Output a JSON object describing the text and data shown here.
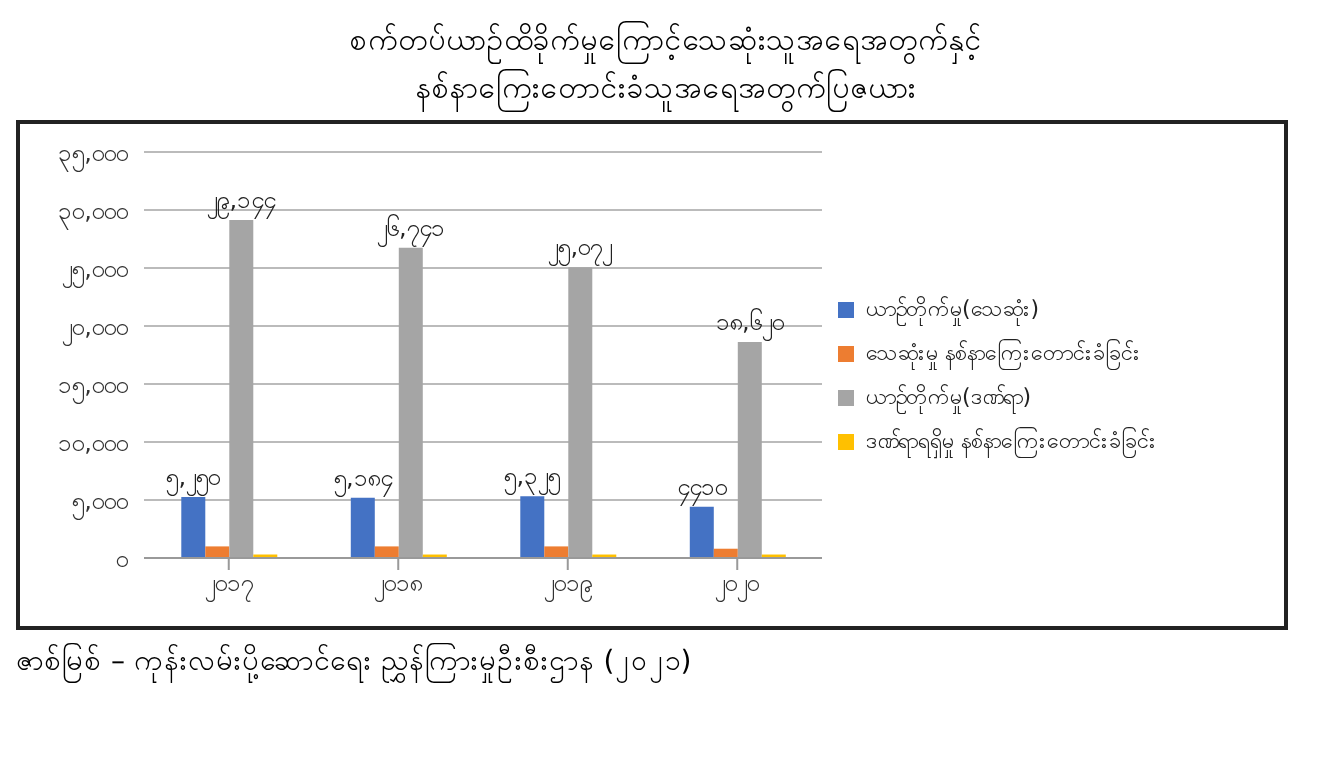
{
  "chart_data": {
    "type": "bar",
    "title": "စက်တပ်ယာဉ်ထိခိုက်မှုကြောင့်သေဆုံးသူအရေအတွက်နှင့်\nနစ်နာကြေးတောင်းခံသူအရေအတွက်ပြဇယား",
    "annotations": [
      "ဇာစ်မြစ် – ကုန်းလမ်းပို့ဆောင်ရေး ညွှန်ကြားမှုဦးစီးဌာန (၂၀၂၁)"
    ],
    "categories": [
      "၂၀၁၇",
      "၂၀၁၈",
      "၂၀၁၉",
      "၂၀၂၀"
    ],
    "series": [
      {
        "name": "ယာဉ်တိုက်မှု(သေဆုံး)",
        "color": "#4472c4",
        "values": [
          5250,
          5184,
          5325,
          4410
        ],
        "value_labels": [
          "၅,၂၅၀",
          "၅,၁၈၄",
          "၅,၃၂၅",
          "၄၄၁၀"
        ]
      },
      {
        "name": "သေဆုံးမှု နစ်နာကြေးတောင်းခံခြင်း",
        "color": "#ed7d31",
        "values": [
          1000,
          1000,
          1000,
          800
        ]
      },
      {
        "name": "ယာဉ်တိုက်မှု(ဒဏ်ရာ)",
        "color": "#a5a5a5",
        "values": [
          29144,
          26741,
          25072,
          18620
        ],
        "value_labels": [
          "၂၉,၁၄၄",
          "၂၆,၇၄၁",
          "၂၅,၀၇၂",
          "၁၈,၆၂၀"
        ]
      },
      {
        "name": "ဒဏ်ရာရရှိမှု နစ်နာကြေးတောင်းခံခြင်း",
        "color": "#ffc000",
        "values": [
          300,
          300,
          300,
          300
        ]
      }
    ],
    "ylim": [
      0,
      35000
    ],
    "yticks": [
      {
        "value": 0,
        "label": "၀"
      },
      {
        "value": 5000,
        "label": "၅,၀၀၀"
      },
      {
        "value": 10000,
        "label": "၁၀,၀၀၀"
      },
      {
        "value": 15000,
        "label": "၁၅,၀၀၀"
      },
      {
        "value": 20000,
        "label": "၂၀,၀၀၀"
      },
      {
        "value": 25000,
        "label": "၂၅,၀၀၀"
      },
      {
        "value": 30000,
        "label": "၃၀,၀၀၀"
      },
      {
        "value": 35000,
        "label": "၃၅,၀၀၀"
      }
    ],
    "grid": "y",
    "legend": "right"
  }
}
